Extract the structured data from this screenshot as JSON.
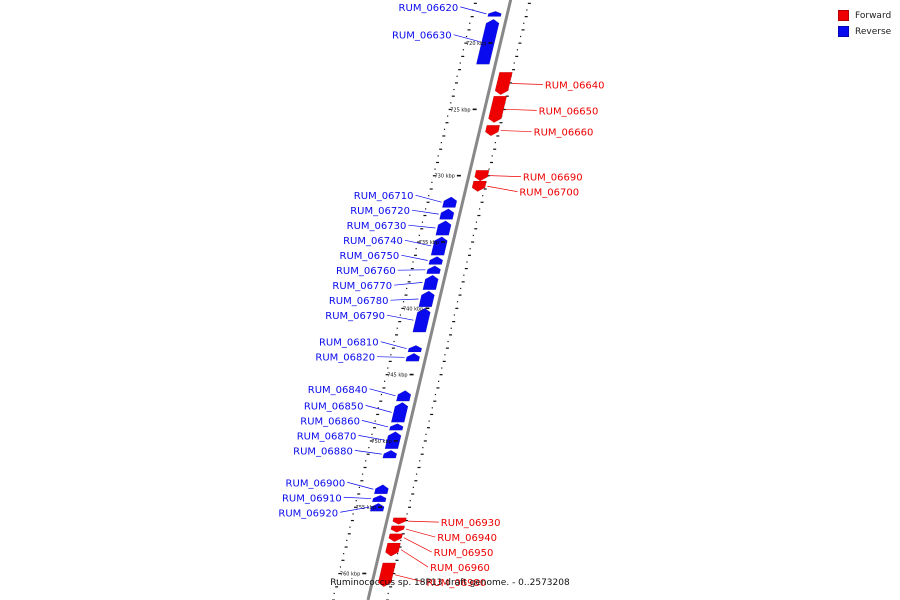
{
  "colors": {
    "forward": "#ee0000",
    "reverse": "#0a0aee",
    "backbone": "#888888",
    "ticks": "#111111"
  },
  "legend": {
    "forward_label": "Forward",
    "reverse_label": "Reverse"
  },
  "caption": "Ruminococcus sp. 18P13 draft genome. - 0..2573208",
  "scale": {
    "unit": "kbp",
    "labels": [
      {
        "text": "720 kbp",
        "value": 720
      },
      {
        "text": "725 kbp",
        "value": 725
      },
      {
        "text": "730 kbp",
        "value": 730
      },
      {
        "text": "735 kbp",
        "value": 735
      },
      {
        "text": "740 kbp",
        "value": 740
      },
      {
        "text": "745 kbp",
        "value": 745
      },
      {
        "text": "750 kbp",
        "value": 750
      },
      {
        "text": "755 kbp",
        "value": 755
      },
      {
        "text": "760 kbp",
        "value": 760
      }
    ]
  },
  "genes": [
    {
      "name": "RUM_06620",
      "strand": "reverse",
      "start": 717.6,
      "end": 718.0
    },
    {
      "name": "RUM_06630",
      "strand": "reverse",
      "start": 718.2,
      "end": 721.6
    },
    {
      "name": "RUM_06640",
      "strand": "forward",
      "start": 722.2,
      "end": 723.9
    },
    {
      "name": "RUM_06650",
      "strand": "forward",
      "start": 724.0,
      "end": 726.0
    },
    {
      "name": "RUM_06660",
      "strand": "forward",
      "start": 726.2,
      "end": 727.0
    },
    {
      "name": "RUM_06690",
      "strand": "forward",
      "start": 729.6,
      "end": 730.4
    },
    {
      "name": "RUM_06700",
      "strand": "forward",
      "start": 730.4,
      "end": 731.2
    },
    {
      "name": "RUM_06710",
      "strand": "reverse",
      "start": 731.6,
      "end": 732.4
    },
    {
      "name": "RUM_06720",
      "strand": "reverse",
      "start": 732.5,
      "end": 733.3
    },
    {
      "name": "RUM_06730",
      "strand": "reverse",
      "start": 733.4,
      "end": 734.5
    },
    {
      "name": "RUM_06740",
      "strand": "reverse",
      "start": 734.6,
      "end": 736.0
    },
    {
      "name": "RUM_06750",
      "strand": "reverse",
      "start": 736.1,
      "end": 736.7
    },
    {
      "name": "RUM_06760",
      "strand": "reverse",
      "start": 736.8,
      "end": 737.4
    },
    {
      "name": "RUM_06770",
      "strand": "reverse",
      "start": 737.5,
      "end": 738.6
    },
    {
      "name": "RUM_06780",
      "strand": "reverse",
      "start": 738.7,
      "end": 739.9
    },
    {
      "name": "RUM_06790",
      "strand": "reverse",
      "start": 740.0,
      "end": 741.8
    },
    {
      "name": "RUM_06810",
      "strand": "reverse",
      "start": 742.8,
      "end": 743.3
    },
    {
      "name": "RUM_06820",
      "strand": "reverse",
      "start": 743.4,
      "end": 744.0
    },
    {
      "name": "RUM_06840",
      "strand": "reverse",
      "start": 746.2,
      "end": 747.0
    },
    {
      "name": "RUM_06850",
      "strand": "reverse",
      "start": 747.1,
      "end": 748.6
    },
    {
      "name": "RUM_06860",
      "strand": "reverse",
      "start": 748.7,
      "end": 749.2
    },
    {
      "name": "RUM_06870",
      "strand": "reverse",
      "start": 749.3,
      "end": 750.6
    },
    {
      "name": "RUM_06880",
      "strand": "reverse",
      "start": 750.7,
      "end": 751.3
    },
    {
      "name": "RUM_06900",
      "strand": "reverse",
      "start": 753.3,
      "end": 754.0
    },
    {
      "name": "RUM_06910",
      "strand": "reverse",
      "start": 754.1,
      "end": 754.6
    },
    {
      "name": "RUM_06920",
      "strand": "reverse",
      "start": 754.7,
      "end": 755.3
    },
    {
      "name": "RUM_06930",
      "strand": "forward",
      "start": 755.8,
      "end": 756.3
    },
    {
      "name": "RUM_06940",
      "strand": "forward",
      "start": 756.4,
      "end": 756.9
    },
    {
      "name": "RUM_06950",
      "strand": "forward",
      "start": 757.0,
      "end": 757.6
    },
    {
      "name": "RUM_06960",
      "strand": "forward",
      "start": 757.7,
      "end": 758.7
    },
    {
      "name": "RUM_06980",
      "strand": "forward",
      "start": 759.2,
      "end": 761.0
    }
  ]
}
